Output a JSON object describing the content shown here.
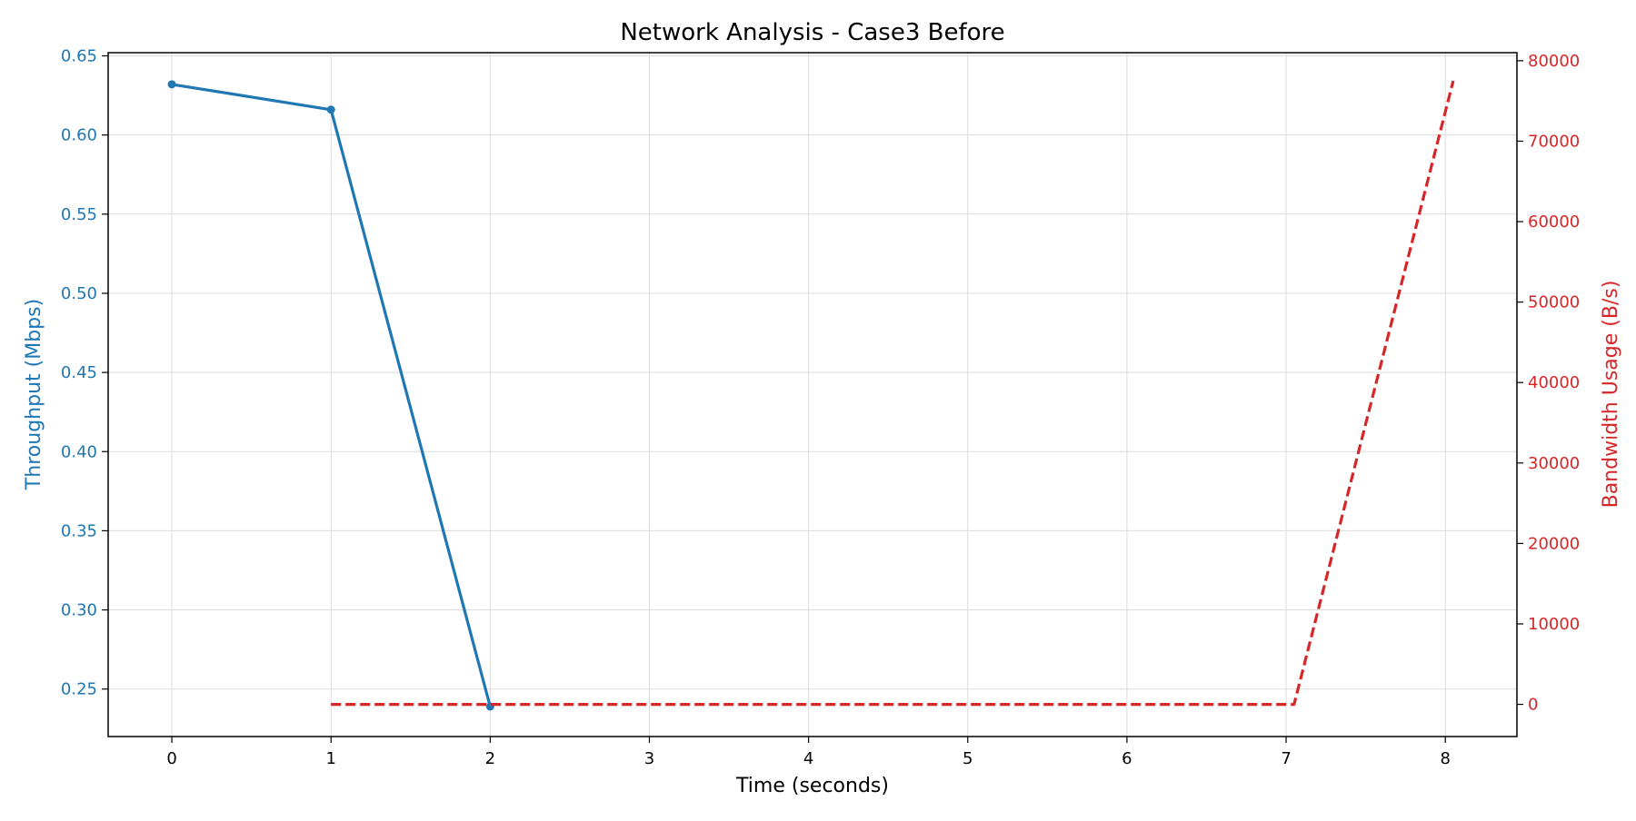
{
  "chart_data": {
    "type": "line",
    "title": "Network Analysis - Case3 Before",
    "xlabel": "Time (seconds)",
    "ylabel": "Throughput (Mbps)",
    "y2label": "Bandwidth Usage (B/s)",
    "xlim": [
      -0.4,
      8.45
    ],
    "ylim": [
      0.22,
      0.652
    ],
    "y2lim": [
      -4000,
      81000
    ],
    "x_ticks": [
      0,
      1,
      2,
      3,
      4,
      5,
      6,
      7,
      8
    ],
    "y_ticks": [
      0.25,
      0.3,
      0.35,
      0.4,
      0.45,
      0.5,
      0.55,
      0.6,
      0.65
    ],
    "y_tick_labels": [
      "0.25",
      "0.30",
      "0.35",
      "0.40",
      "0.45",
      "0.50",
      "0.55",
      "0.60",
      "0.65"
    ],
    "y2_ticks": [
      0,
      10000,
      20000,
      30000,
      40000,
      50000,
      60000,
      70000,
      80000
    ],
    "y2_tick_labels": [
      "0",
      "10000",
      "20000",
      "30000",
      "40000",
      "50000",
      "60000",
      "70000",
      "80000"
    ],
    "grid": true,
    "series": [
      {
        "axis": "left",
        "color": "#1f77b4",
        "style": "solid",
        "markers": true,
        "x": [
          0,
          1,
          2
        ],
        "values": [
          0.632,
          0.616,
          0.239
        ]
      },
      {
        "axis": "right",
        "color": "#d62728",
        "style": "dashed",
        "markers": false,
        "x": [
          1,
          2,
          3,
          4,
          5,
          6,
          7.05,
          8.05
        ],
        "values": [
          0,
          0,
          0,
          0,
          0,
          0,
          0,
          77500
        ]
      }
    ]
  }
}
